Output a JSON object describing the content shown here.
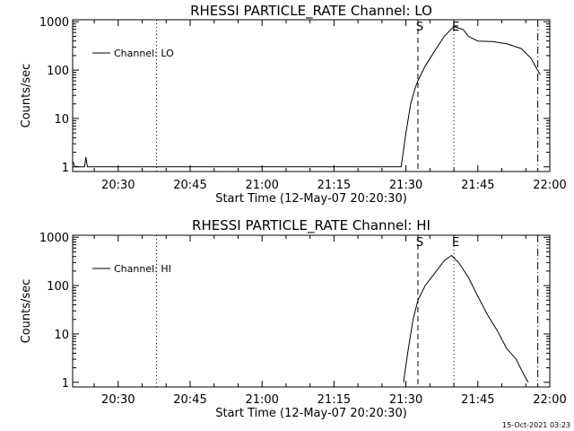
{
  "footer_timestamp": "15-Oct-2021 03:23",
  "chart_data": [
    {
      "type": "line",
      "title": "RHESSI PARTICLE_RATE Channel: LO",
      "xlabel": "Start Time (12-May-07 20:20:30)",
      "ylabel": "Counts/sec",
      "x_scale": "time",
      "y_scale": "log",
      "xlim": [
        "20:20:30",
        "22:00:00"
      ],
      "ylim": [
        0.8,
        1100
      ],
      "x_ticks": [
        "20:30",
        "20:45",
        "21:00",
        "21:15",
        "21:30",
        "21:45",
        "22:00"
      ],
      "y_ticks": [
        "1",
        "10",
        "100",
        "1000"
      ],
      "legend": "top-left",
      "series": [
        {
          "name": "Channel: LO",
          "x": [
            "20:20:30",
            "20:21:00",
            "20:21:30",
            "20:22:00",
            "20:23:00",
            "20:23:15",
            "20:23:35",
            "21:29:00",
            "21:30:00",
            "21:31:00",
            "21:32:00",
            "21:32:30",
            "21:34:00",
            "21:36:00",
            "21:38:00",
            "21:40:00",
            "21:42:00",
            "21:43:00",
            "21:45:00",
            "21:48:00",
            "21:51:00",
            "21:54:00",
            "21:56:00",
            "21:57:00",
            "21:58:00"
          ],
          "values": [
            1.3,
            1,
            1,
            1,
            1,
            1.6,
            1,
            1,
            5,
            20,
            45,
            60,
            120,
            250,
            500,
            800,
            680,
            500,
            400,
            390,
            350,
            280,
            180,
            120,
            80
          ]
        }
      ],
      "markers": [
        {
          "label": "S",
          "time": "21:32:30",
          "style": "dashed"
        },
        {
          "label": "E",
          "time": "21:40:00",
          "style": "dotted"
        },
        {
          "label": "",
          "time": "20:38:00",
          "style": "dotted"
        },
        {
          "label": "",
          "time": "21:57:30",
          "style": "dash-dot"
        }
      ]
    },
    {
      "type": "line",
      "title": "RHESSI PARTICLE_RATE Channel: HI",
      "xlabel": "Start Time (12-May-07 20:20:30)",
      "ylabel": "Counts/sec",
      "x_scale": "time",
      "y_scale": "log",
      "xlim": [
        "20:20:30",
        "22:00:00"
      ],
      "ylim": [
        0.8,
        1100
      ],
      "x_ticks": [
        "20:30",
        "20:45",
        "21:00",
        "21:15",
        "21:30",
        "21:45",
        "22:00"
      ],
      "y_ticks": [
        "1",
        "10",
        "100",
        "1000"
      ],
      "legend": "top-left",
      "series": [
        {
          "name": "Channel: HI",
          "x": [
            "21:29:30",
            "21:30:30",
            "21:31:30",
            "21:32:30",
            "21:34:00",
            "21:36:00",
            "21:38:00",
            "21:39:30",
            "21:41:00",
            "21:43:00",
            "21:45:00",
            "21:47:00",
            "21:49:00",
            "21:51:00",
            "21:53:00",
            "21:54:30",
            "21:55:30"
          ],
          "values": [
            1,
            5,
            20,
            50,
            100,
            180,
            330,
            420,
            300,
            150,
            60,
            25,
            12,
            5,
            3,
            1.5,
            1
          ]
        }
      ],
      "markers": [
        {
          "label": "S",
          "time": "21:32:30",
          "style": "dashed"
        },
        {
          "label": "E",
          "time": "21:40:00",
          "style": "dotted"
        },
        {
          "label": "",
          "time": "20:38:00",
          "style": "dotted"
        },
        {
          "label": "",
          "time": "21:57:30",
          "style": "dash-dot"
        }
      ]
    }
  ]
}
